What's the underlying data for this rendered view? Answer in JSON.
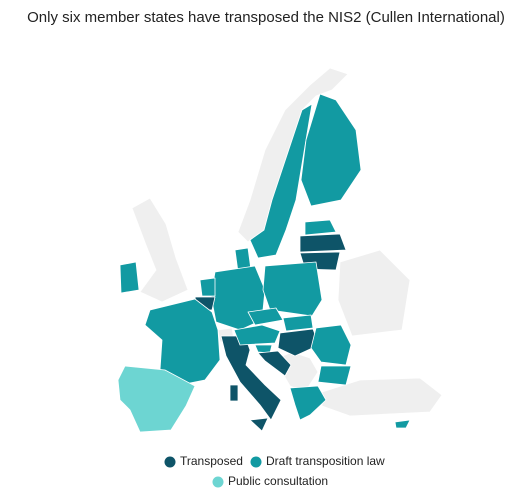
{
  "title": "Only six member states have transposed the NIS2 (Cullen International)",
  "legend": {
    "items": [
      {
        "label": "Transposed",
        "color": "#0e5468"
      },
      {
        "label": "Draft transposition law",
        "color": "#129aa2"
      },
      {
        "label": "Public consultation",
        "color": "#6dd5d2"
      }
    ]
  }
}
